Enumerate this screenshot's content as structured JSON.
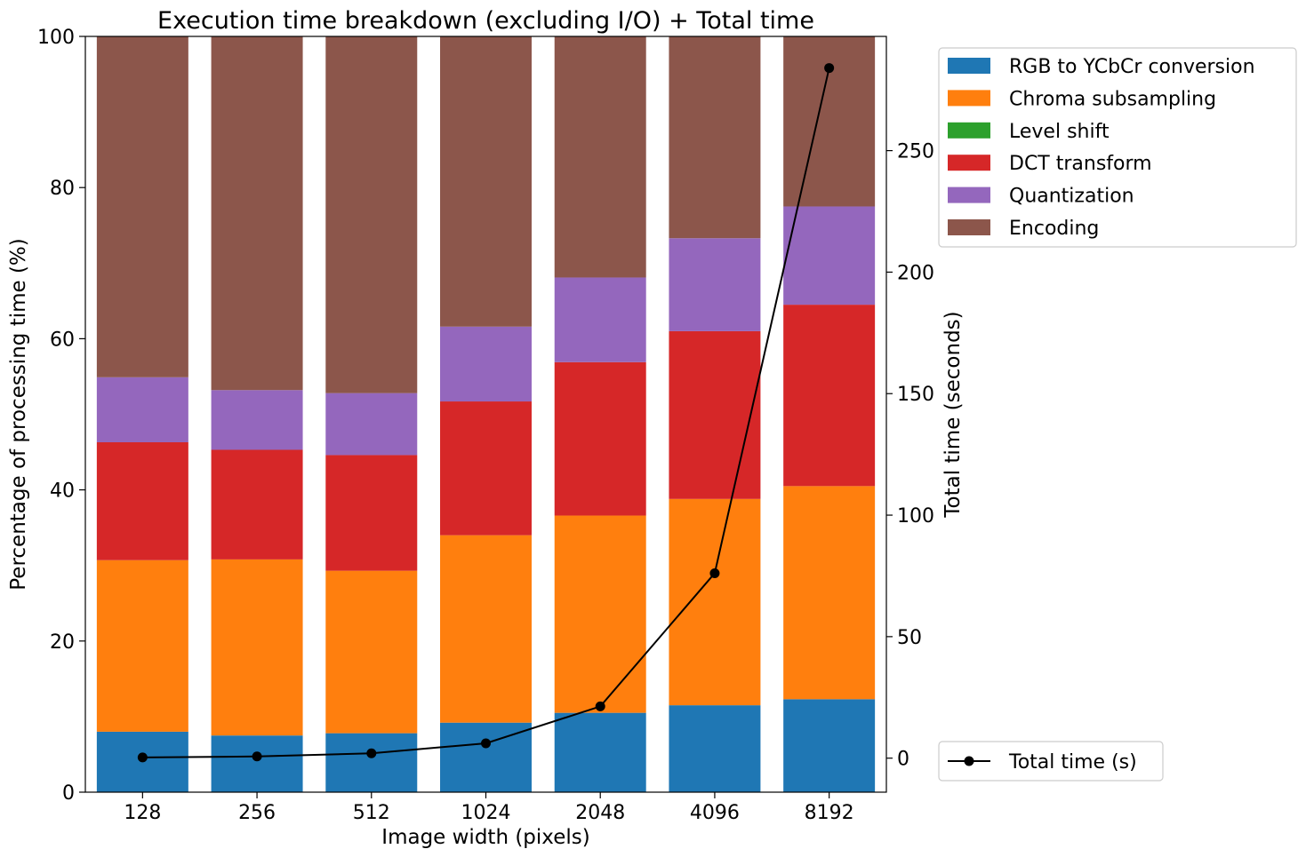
{
  "chart_data": {
    "type": "bar",
    "stacked": true,
    "title": "Execution time breakdown (excluding I/O) + Total time",
    "xlabel": "Image width (pixels)",
    "ylabel": "Percentage of processing time (%)",
    "y2label": "Total time (seconds)",
    "ylim": [
      0,
      100
    ],
    "y2lim": [
      -14,
      297
    ],
    "yticks": [
      0,
      20,
      40,
      60,
      80,
      100
    ],
    "y2ticks": [
      0,
      50,
      100,
      150,
      200,
      250
    ],
    "categories": [
      "128",
      "256",
      "512",
      "1024",
      "2048",
      "4096",
      "8192"
    ],
    "grid": false,
    "series": [
      {
        "name": "RGB to YCbCr conversion",
        "color": "#1f77b4",
        "values": [
          8.0,
          7.5,
          7.8,
          9.2,
          10.5,
          11.5,
          12.3
        ]
      },
      {
        "name": "Chroma subsampling",
        "color": "#ff7f0e",
        "values": [
          22.7,
          23.3,
          21.5,
          24.8,
          26.1,
          27.3,
          28.2
        ]
      },
      {
        "name": "Level shift",
        "color": "#2ca02c",
        "values": [
          0.0,
          0.0,
          0.0,
          0.0,
          0.0,
          0.0,
          0.0
        ]
      },
      {
        "name": "DCT transform",
        "color": "#d62728",
        "values": [
          15.6,
          14.5,
          15.3,
          17.7,
          20.3,
          22.2,
          24.0
        ]
      },
      {
        "name": "Quantization",
        "color": "#9467bd",
        "values": [
          8.6,
          7.9,
          8.2,
          9.9,
          11.2,
          12.3,
          13.0
        ]
      },
      {
        "name": "Encoding",
        "color": "#8c564b",
        "values": [
          45.1,
          46.8,
          47.2,
          38.4,
          31.9,
          26.7,
          22.5
        ]
      }
    ],
    "line": {
      "name": "Total time (s)",
      "color": "#000000",
      "axis": "right",
      "values": [
        0.3,
        0.7,
        2.0,
        6.1,
        21.3,
        76.1,
        284.0
      ]
    },
    "legend": {
      "bars_position": "outside-top-right",
      "line_position": "outside-bottom-right"
    }
  }
}
